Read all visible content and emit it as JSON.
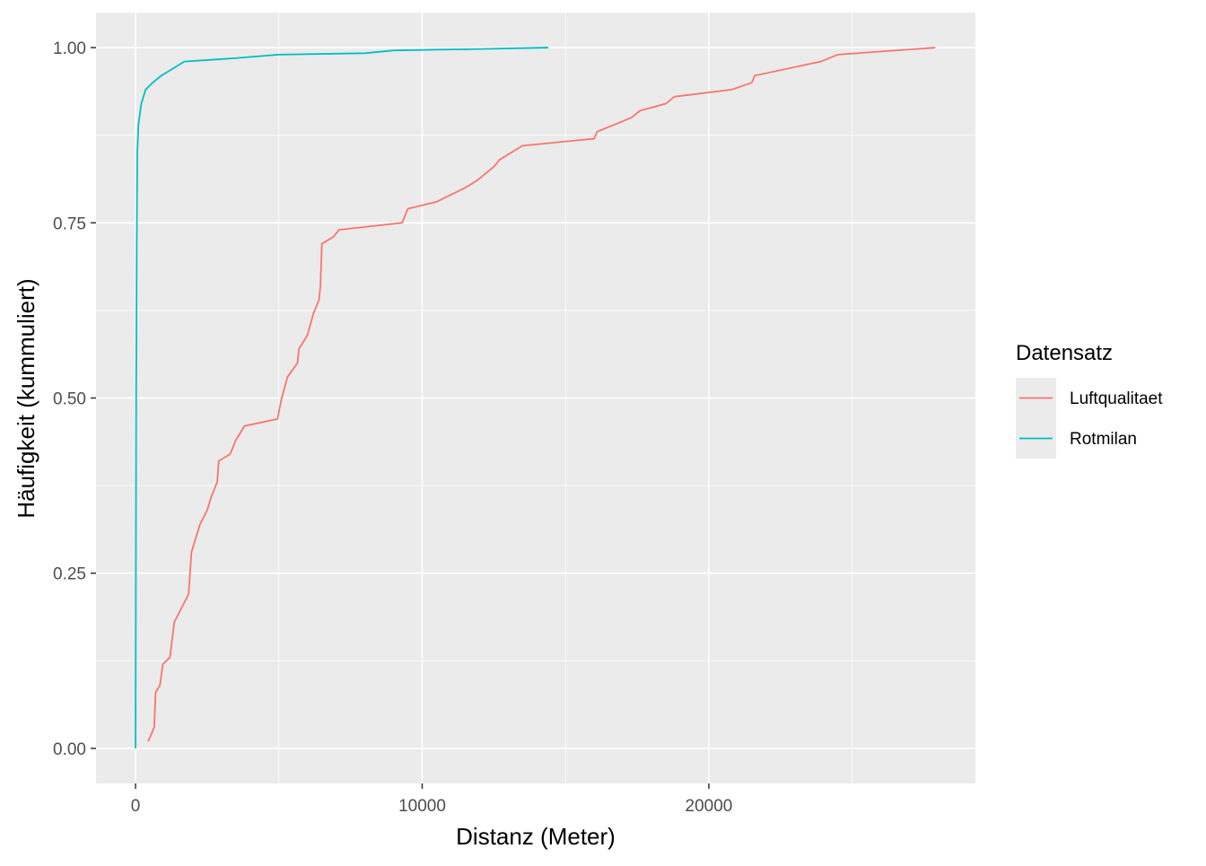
{
  "chart_data": {
    "type": "line",
    "x_label": "Distanz (Meter)",
    "y_label": "Häufigkeit (kummuliert)",
    "legend_title": "Datensatz",
    "legend_position": "right",
    "grid": true,
    "xlim": [
      -1380,
      29300
    ],
    "ylim": [
      -0.05,
      1.05
    ],
    "xticks": [
      0,
      10000,
      20000
    ],
    "yticks": [
      {
        "value": 0,
        "label": "0.00"
      },
      {
        "value": 0.25,
        "label": "0.25"
      },
      {
        "value": 0.5,
        "label": "0.50"
      },
      {
        "value": 0.75,
        "label": "0.75"
      },
      {
        "value": 1,
        "label": "1.00"
      }
    ],
    "series": [
      {
        "name": "Luftqualitaet",
        "color": "#f8766d",
        "x": [
          440,
          650,
          700,
          850,
          950,
          1200,
          1350,
          1600,
          1850,
          1950,
          2100,
          2250,
          2500,
          2650,
          2850,
          2900,
          3300,
          3500,
          3800,
          4950,
          5100,
          5300,
          5650,
          5700,
          6000,
          6200,
          6400,
          6450,
          6500,
          6900,
          7100,
          9300,
          9500,
          10500,
          11500,
          11900,
          12500,
          12700,
          13500,
          16000,
          16100,
          17300,
          17600,
          18500,
          18800,
          20800,
          21500,
          21600,
          23900,
          24500,
          27900
        ],
        "values": [
          0.01,
          0.03,
          0.08,
          0.09,
          0.12,
          0.13,
          0.18,
          0.2,
          0.22,
          0.28,
          0.3,
          0.32,
          0.34,
          0.36,
          0.38,
          0.41,
          0.42,
          0.44,
          0.46,
          0.47,
          0.5,
          0.53,
          0.55,
          0.57,
          0.59,
          0.62,
          0.64,
          0.66,
          0.72,
          0.73,
          0.74,
          0.75,
          0.77,
          0.78,
          0.8,
          0.81,
          0.83,
          0.84,
          0.86,
          0.87,
          0.88,
          0.9,
          0.91,
          0.92,
          0.93,
          0.94,
          0.95,
          0.96,
          0.98,
          0.99,
          1.0
        ]
      },
      {
        "name": "Rotmilan",
        "color": "#00bfc4",
        "x": [
          0,
          20,
          40,
          60,
          100,
          200,
          350,
          600,
          900,
          1300,
          1700,
          3500,
          5000,
          8000,
          9000,
          12000,
          14400
        ],
        "values": [
          0,
          0.5,
          0.71,
          0.85,
          0.89,
          0.92,
          0.94,
          0.95,
          0.96,
          0.97,
          0.98,
          0.985,
          0.99,
          0.992,
          0.996,
          0.998,
          1.0
        ]
      }
    ]
  }
}
